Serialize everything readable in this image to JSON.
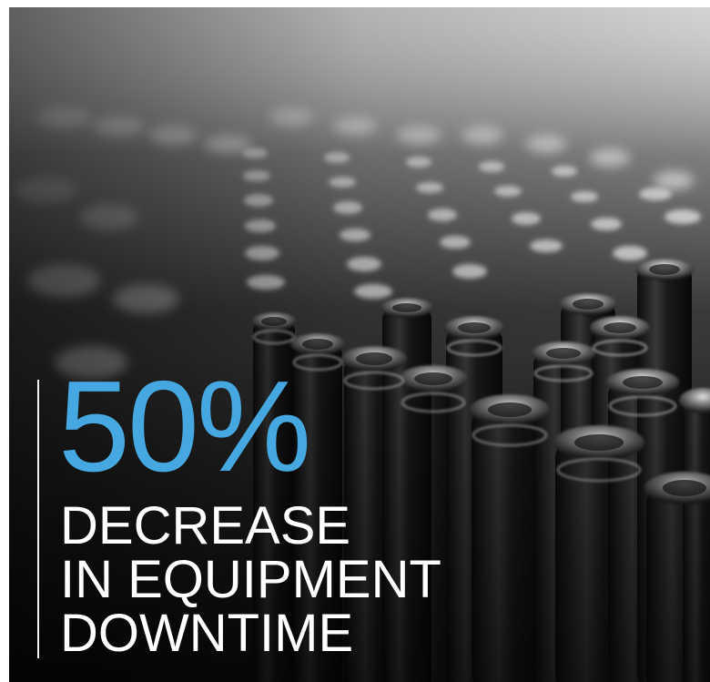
{
  "stat": {
    "value": "50%",
    "caption_lines": [
      "DECREASE",
      "IN EQUIPMENT",
      "DOWNTIME"
    ]
  },
  "colors": {
    "accent": "#45a8e0",
    "caption": "#ffffff",
    "divider": "#f2f2f2",
    "photo_dark": "#141414",
    "photo_light": "#9a9a9a"
  },
  "photo": {
    "subject": "rows of glass bottles on a production line",
    "style": "black-and-white"
  }
}
